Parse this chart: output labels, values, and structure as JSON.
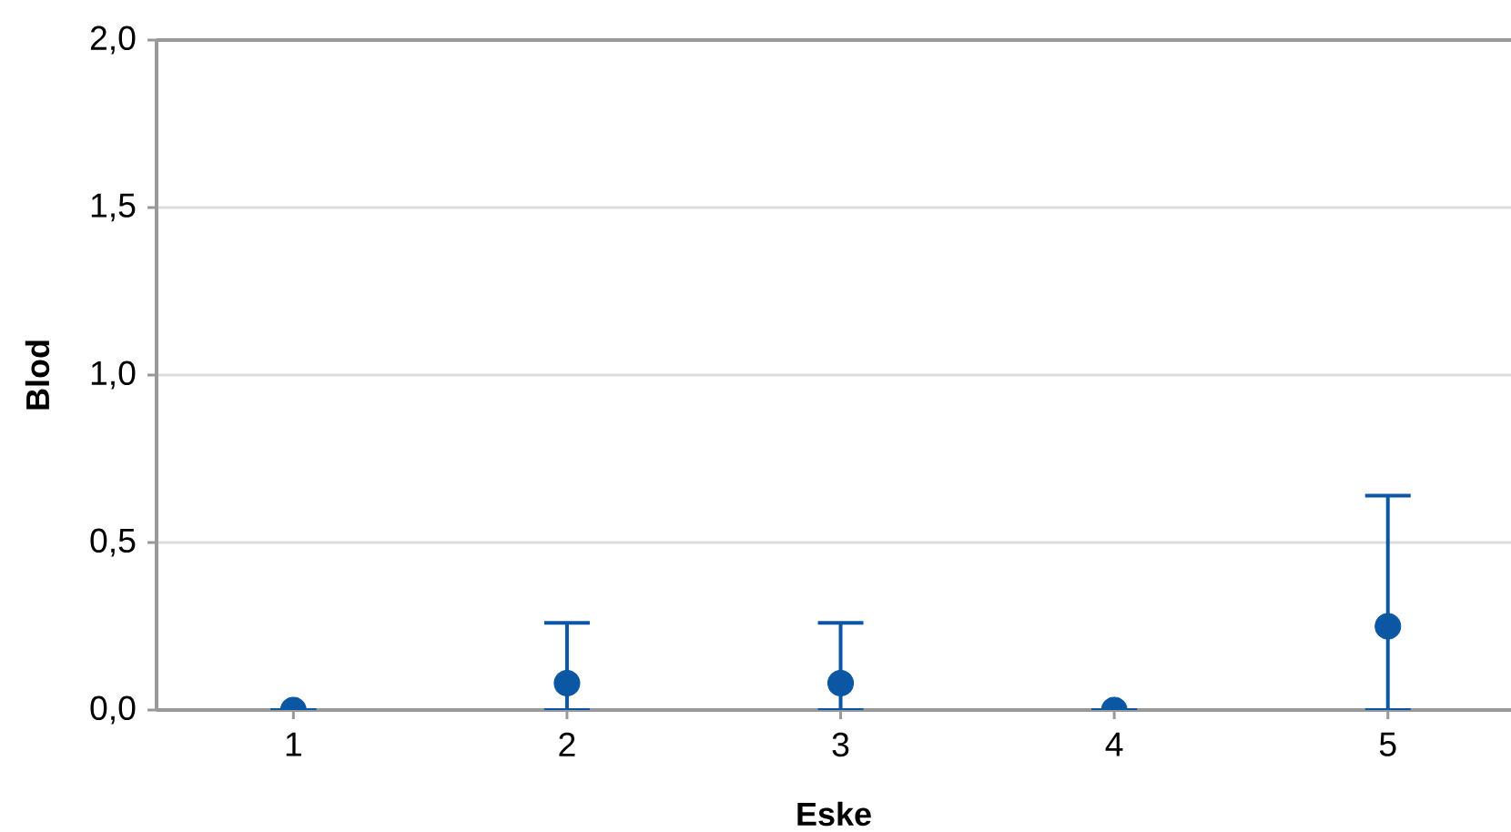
{
  "chart_data": {
    "type": "scatter",
    "xlabel": "Eske",
    "ylabel": "Blod",
    "categories": [
      "1",
      "2",
      "3",
      "4",
      "5"
    ],
    "values": [
      0,
      0.08,
      0.08,
      0,
      0.25
    ],
    "errors": [
      0,
      [
        0,
        0.26
      ],
      [
        0,
        0.26
      ],
      0,
      [
        0,
        0.64
      ]
    ],
    "color": "#0b57a4",
    "marker": "circle",
    "grid": "y",
    "ylim": [
      0,
      2
    ],
    "yticks": [
      {
        "value": 0,
        "label": "0,0"
      },
      {
        "value": 0.5,
        "label": "0,5"
      },
      {
        "value": 1,
        "label": "1,0"
      },
      {
        "value": 1.5,
        "label": "1,5"
      },
      {
        "value": 2,
        "label": "2,0"
      }
    ]
  }
}
